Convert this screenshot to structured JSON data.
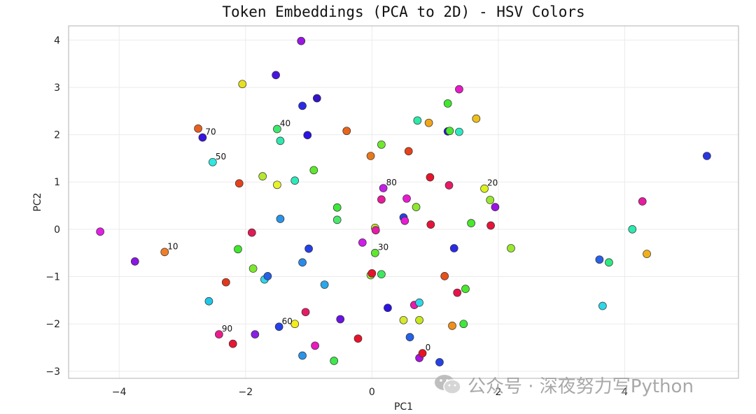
{
  "chart_data": {
    "type": "scatter",
    "title": "Token Embeddings (PCA to 2D) - HSV Colors",
    "xlabel": "PC1",
    "ylabel": "PC2",
    "xlim": [
      -4.8,
      5.8
    ],
    "ylim": [
      -3.15,
      4.3
    ],
    "xticks": [
      -4,
      -2,
      0,
      2,
      4
    ],
    "yticks": [
      -3,
      -2,
      -1,
      0,
      1,
      2,
      3,
      4
    ],
    "xtick_labels": [
      "−4",
      "−2",
      "0",
      "2",
      "4"
    ],
    "ytick_labels": [
      "−3",
      "−2",
      "−1",
      "0",
      "1",
      "2",
      "3",
      "4"
    ],
    "grid": true,
    "points": [
      {
        "x": -4.3,
        "y": -0.05,
        "color": "#e31fe6"
      },
      {
        "x": -3.75,
        "y": -0.68,
        "color": "#8a17e3"
      },
      {
        "x": -3.28,
        "y": -0.48,
        "color": "#f07f2a",
        "label": "10"
      },
      {
        "x": -2.75,
        "y": 2.13,
        "color": "#e8601f"
      },
      {
        "x": -2.68,
        "y": 1.94,
        "color": "#3813e3",
        "label": "70"
      },
      {
        "x": -2.52,
        "y": 1.42,
        "color": "#2ee8e0",
        "label": "50"
      },
      {
        "x": -2.42,
        "y": -2.22,
        "color": "#ee1a8d",
        "label": "90"
      },
      {
        "x": -2.58,
        "y": -1.52,
        "color": "#1fc6e8"
      },
      {
        "x": -2.31,
        "y": -1.12,
        "color": "#e3371c"
      },
      {
        "x": -2.2,
        "y": -2.42,
        "color": "#e81733"
      },
      {
        "x": -2.1,
        "y": 0.97,
        "color": "#e8411a"
      },
      {
        "x": -2.12,
        "y": -0.42,
        "color": "#3ee82c"
      },
      {
        "x": -2.05,
        "y": 3.07,
        "color": "#e8e01f"
      },
      {
        "x": -1.9,
        "y": -0.07,
        "color": "#e31a55"
      },
      {
        "x": -1.88,
        "y": -0.83,
        "color": "#7be82e"
      },
      {
        "x": -1.85,
        "y": -2.22,
        "color": "#8a1ee3"
      },
      {
        "x": -1.73,
        "y": 1.12,
        "color": "#b6e82e"
      },
      {
        "x": -1.7,
        "y": -1.06,
        "color": "#2ed6e8"
      },
      {
        "x": -1.65,
        "y": -0.99,
        "color": "#2460e8"
      },
      {
        "x": -1.52,
        "y": 3.26,
        "color": "#4a13e3"
      },
      {
        "x": -1.5,
        "y": 2.12,
        "color": "#3ee86d",
        "label": "40"
      },
      {
        "x": -1.5,
        "y": 0.94,
        "color": "#e6f22a"
      },
      {
        "x": -1.45,
        "y": 1.87,
        "color": "#2ee8b0"
      },
      {
        "x": -1.45,
        "y": 0.22,
        "color": "#2a94e8"
      },
      {
        "x": -1.47,
        "y": -2.06,
        "color": "#2441e8",
        "label": "60"
      },
      {
        "x": -1.22,
        "y": 1.03,
        "color": "#2ee8bc"
      },
      {
        "x": -1.22,
        "y": -2.0,
        "color": "#f2ee1a"
      },
      {
        "x": -1.12,
        "y": 3.98,
        "color": "#9a17e3"
      },
      {
        "x": -1.1,
        "y": 2.61,
        "color": "#2a2ae8"
      },
      {
        "x": -1.1,
        "y": -0.7,
        "color": "#2a8ae8"
      },
      {
        "x": -1.1,
        "y": -2.67,
        "color": "#2a94e8"
      },
      {
        "x": -1.05,
        "y": -1.75,
        "color": "#e81a66"
      },
      {
        "x": -1.02,
        "y": 1.99,
        "color": "#2a13e3"
      },
      {
        "x": -1.0,
        "y": -0.41,
        "color": "#2441e8"
      },
      {
        "x": -0.92,
        "y": 1.25,
        "color": "#5de82e"
      },
      {
        "x": -0.9,
        "y": -2.46,
        "color": "#e81ac0"
      },
      {
        "x": -0.87,
        "y": 2.77,
        "color": "#3413c8"
      },
      {
        "x": -0.75,
        "y": -1.17,
        "color": "#2aa8e8"
      },
      {
        "x": -0.6,
        "y": -2.78,
        "color": "#3ee84a"
      },
      {
        "x": -0.55,
        "y": 0.46,
        "color": "#3ee83a"
      },
      {
        "x": -0.55,
        "y": 0.2,
        "color": "#4ae86a"
      },
      {
        "x": -0.5,
        "y": -1.9,
        "color": "#6a13e3"
      },
      {
        "x": -0.4,
        "y": 2.08,
        "color": "#e8641a"
      },
      {
        "x": -0.22,
        "y": -2.31,
        "color": "#e8132a"
      },
      {
        "x": -0.15,
        "y": -0.28,
        "color": "#d01ee8"
      },
      {
        "x": -0.02,
        "y": 1.55,
        "color": "#e8781a"
      },
      {
        "x": -0.02,
        "y": -0.97,
        "color": "#9ae82e"
      },
      {
        "x": 0.0,
        "y": -0.93,
        "color": "#e8132a"
      },
      {
        "x": 0.05,
        "y": 0.03,
        "color": "#c8e81e"
      },
      {
        "x": 0.05,
        "y": -0.5,
        "color": "#5ee82e",
        "label": "30"
      },
      {
        "x": 0.06,
        "y": -0.02,
        "color": "#e81aaa"
      },
      {
        "x": 0.15,
        "y": 1.79,
        "color": "#6ee82e"
      },
      {
        "x": 0.15,
        "y": 0.63,
        "color": "#e81a99"
      },
      {
        "x": 0.15,
        "y": -0.95,
        "color": "#3ee860"
      },
      {
        "x": 0.18,
        "y": 0.87,
        "color": "#c41ee8",
        "label": "80"
      },
      {
        "x": 0.25,
        "y": -1.66,
        "color": "#2a13e3"
      },
      {
        "x": 0.5,
        "y": 0.25,
        "color": "#2441e8"
      },
      {
        "x": 0.5,
        "y": -1.92,
        "color": "#d6e82e"
      },
      {
        "x": 0.52,
        "y": 0.18,
        "color": "#e81ad6"
      },
      {
        "x": 0.55,
        "y": 0.65,
        "color": "#e81ad0"
      },
      {
        "x": 0.58,
        "y": 1.65,
        "color": "#e8411a"
      },
      {
        "x": 0.6,
        "y": -2.28,
        "color": "#2460e8"
      },
      {
        "x": 0.67,
        "y": -1.6,
        "color": "#e81ab0"
      },
      {
        "x": 0.7,
        "y": 0.47,
        "color": "#8ee82e"
      },
      {
        "x": 0.72,
        "y": 2.3,
        "color": "#2ee8a8"
      },
      {
        "x": 0.75,
        "y": -1.92,
        "color": "#c8e81e"
      },
      {
        "x": 0.75,
        "y": -1.55,
        "color": "#2ed6e8"
      },
      {
        "x": 0.75,
        "y": -2.72,
        "color": "#a813e3"
      },
      {
        "x": 0.8,
        "y": -2.62,
        "color": "#e81322",
        "label": "0"
      },
      {
        "x": 0.9,
        "y": 2.25,
        "color": "#f0a51a"
      },
      {
        "x": 0.92,
        "y": 1.1,
        "color": "#e8132a"
      },
      {
        "x": 0.93,
        "y": 0.1,
        "color": "#e8133a"
      },
      {
        "x": 1.07,
        "y": -2.81,
        "color": "#2441e8"
      },
      {
        "x": 1.15,
        "y": -0.99,
        "color": "#e8501a"
      },
      {
        "x": 1.2,
        "y": 2.07,
        "color": "#2a13e3"
      },
      {
        "x": 1.2,
        "y": 2.66,
        "color": "#3ee82c"
      },
      {
        "x": 1.23,
        "y": 2.08,
        "color": "#4ae82c"
      },
      {
        "x": 1.22,
        "y": 0.93,
        "color": "#e81a66"
      },
      {
        "x": 1.27,
        "y": -2.04,
        "color": "#f0901a"
      },
      {
        "x": 1.3,
        "y": -0.4,
        "color": "#2a2ae8"
      },
      {
        "x": 1.35,
        "y": -1.34,
        "color": "#e8134a"
      },
      {
        "x": 1.38,
        "y": 2.96,
        "color": "#e81ac8"
      },
      {
        "x": 1.38,
        "y": 2.06,
        "color": "#2ee8c4"
      },
      {
        "x": 1.45,
        "y": -2.0,
        "color": "#3ee83a"
      },
      {
        "x": 1.48,
        "y": -1.26,
        "color": "#4ae82c"
      },
      {
        "x": 1.57,
        "y": 0.13,
        "color": "#4ae82c"
      },
      {
        "x": 1.65,
        "y": 2.34,
        "color": "#f0c01a"
      },
      {
        "x": 1.78,
        "y": 0.86,
        "color": "#dcf21a",
        "label": "20"
      },
      {
        "x": 1.87,
        "y": 0.62,
        "color": "#9ae82e"
      },
      {
        "x": 1.88,
        "y": 0.08,
        "color": "#e8133a"
      },
      {
        "x": 1.95,
        "y": 0.47,
        "color": "#9a13e3"
      },
      {
        "x": 2.2,
        "y": -0.4,
        "color": "#9ae82e"
      },
      {
        "x": 3.6,
        "y": -0.64,
        "color": "#2a60e8"
      },
      {
        "x": 3.65,
        "y": -1.62,
        "color": "#2ed6e8"
      },
      {
        "x": 3.75,
        "y": -0.7,
        "color": "#2ee880"
      },
      {
        "x": 4.12,
        "y": 0.0,
        "color": "#2ee8b0"
      },
      {
        "x": 4.28,
        "y": 0.59,
        "color": "#e81aa0"
      },
      {
        "x": 4.35,
        "y": -0.52,
        "color": "#f0b01a"
      },
      {
        "x": 5.3,
        "y": 1.55,
        "color": "#2a36e3"
      }
    ]
  },
  "watermark": {
    "text": "公众号 · 深夜努力写Python"
  }
}
